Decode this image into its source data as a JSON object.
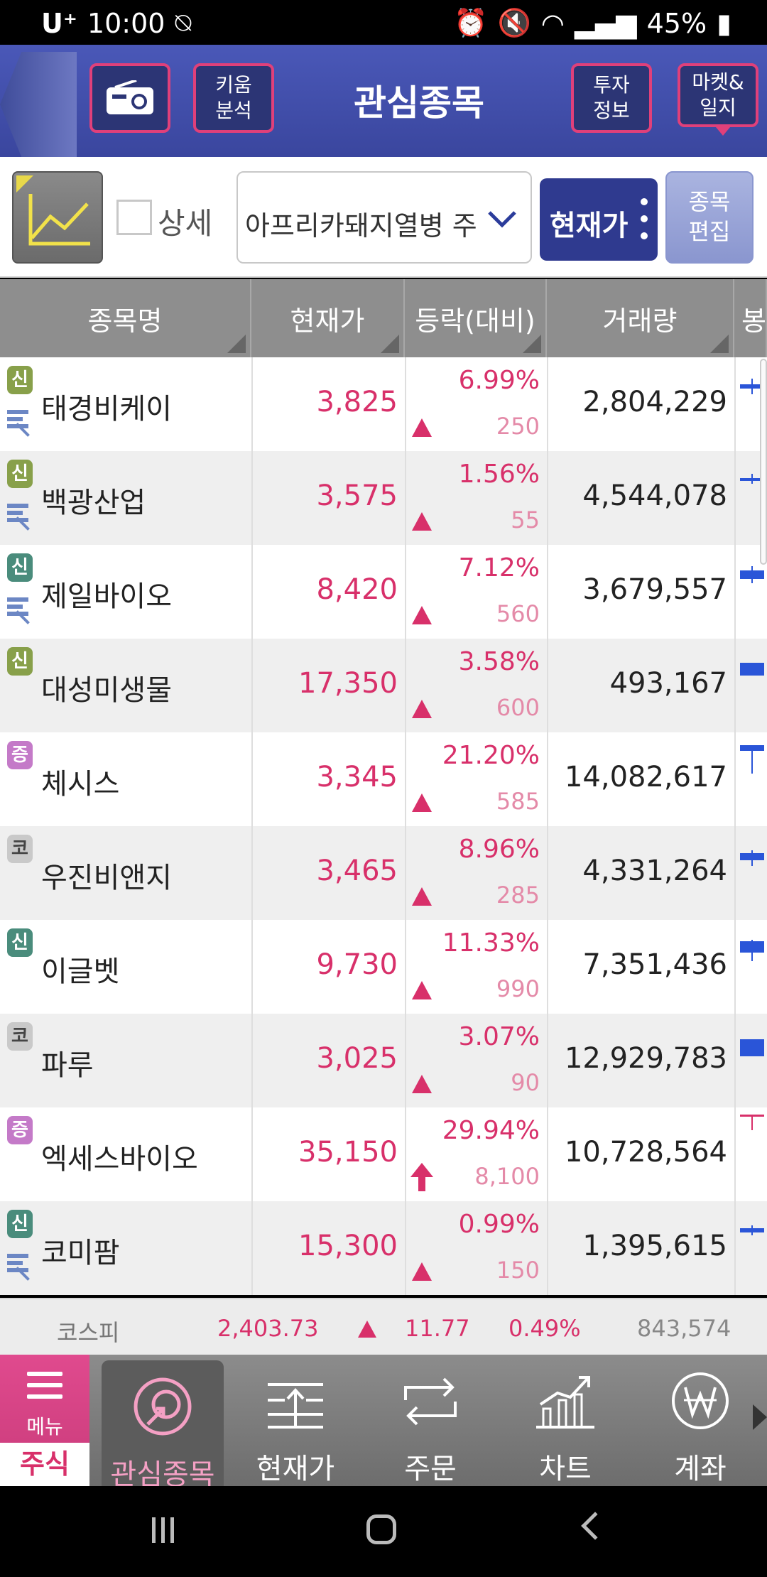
{
  "status": {
    "carrier": "U⁺",
    "time": "10:00",
    "battery": "45%"
  },
  "header": {
    "title": "관심종목",
    "kiwoom_btn": "키움\n분석",
    "invest_btn": "투자\n정보",
    "market_btn": "마켓&\n일지"
  },
  "toolbar": {
    "detail_label": "상세",
    "group_value": "아프리카돼지열병 주",
    "view_btn": "현재가",
    "edit_btn": "종목\n편집"
  },
  "columns": {
    "name": "종목명",
    "price": "현재가",
    "change": "등락(대비)",
    "volume": "거래량",
    "candle": "봉"
  },
  "rows": [
    {
      "badge": "신",
      "badge_type": "sin",
      "credit": true,
      "name": "태경비케이",
      "price": "3,825",
      "pct": "6.99%",
      "diff": "250",
      "dir": "up",
      "volume": "2,804,229"
    },
    {
      "badge": "신",
      "badge_type": "sin",
      "credit": true,
      "name": "백광산업",
      "price": "3,575",
      "pct": "1.56%",
      "diff": "55",
      "dir": "up",
      "volume": "4,544,078"
    },
    {
      "badge": "신",
      "badge_type": "sin2",
      "credit": true,
      "name": "제일바이오",
      "price": "8,420",
      "pct": "7.12%",
      "diff": "560",
      "dir": "up",
      "volume": "3,679,557"
    },
    {
      "badge": "신",
      "badge_type": "sin",
      "credit": false,
      "name": "대성미생물",
      "price": "17,350",
      "pct": "3.58%",
      "diff": "600",
      "dir": "up",
      "volume": "493,167"
    },
    {
      "badge": "증",
      "badge_type": "jeung",
      "credit": false,
      "name": "체시스",
      "price": "3,345",
      "pct": "21.20%",
      "diff": "585",
      "dir": "up",
      "volume": "14,082,617"
    },
    {
      "badge": "코",
      "badge_type": "ko",
      "credit": false,
      "name": "우진비앤지",
      "price": "3,465",
      "pct": "8.96%",
      "diff": "285",
      "dir": "up",
      "volume": "4,331,264"
    },
    {
      "badge": "신",
      "badge_type": "sin2",
      "credit": false,
      "name": "이글벳",
      "price": "9,730",
      "pct": "11.33%",
      "diff": "990",
      "dir": "up",
      "volume": "7,351,436"
    },
    {
      "badge": "코",
      "badge_type": "ko",
      "credit": false,
      "name": "파루",
      "price": "3,025",
      "pct": "3.07%",
      "diff": "90",
      "dir": "up",
      "volume": "12,929,783"
    },
    {
      "badge": "증",
      "badge_type": "jeung",
      "credit": false,
      "name": "엑세스바이오",
      "price": "35,150",
      "pct": "29.94%",
      "diff": "8,100",
      "dir": "limit",
      "volume": "10,728,564"
    },
    {
      "badge": "신",
      "badge_type": "sin2",
      "credit": true,
      "name": "코미팜",
      "price": "15,300",
      "pct": "0.99%",
      "diff": "150",
      "dir": "up",
      "volume": "1,395,615"
    }
  ],
  "index": {
    "name": "코스피",
    "value": "2,403.73",
    "change": "11.77",
    "pct": "0.49%",
    "volume": "843,574"
  },
  "bottom_nav": {
    "menu_label": "메뉴",
    "stock_label": "주식",
    "items": [
      {
        "label": "관심종목",
        "icon": "watchlist-icon",
        "active": true
      },
      {
        "label": "현재가",
        "icon": "current-price-icon",
        "active": false
      },
      {
        "label": "주문",
        "icon": "order-icon",
        "active": false
      },
      {
        "label": "차트",
        "icon": "chart-icon",
        "active": false
      },
      {
        "label": "계좌",
        "icon": "account-won-icon",
        "active": false
      }
    ]
  },
  "colors": {
    "header_blue": "#3a469e",
    "up_red": "#d8306a",
    "candle_blue": "#2a55d8",
    "menu_pink": "#d64386"
  }
}
